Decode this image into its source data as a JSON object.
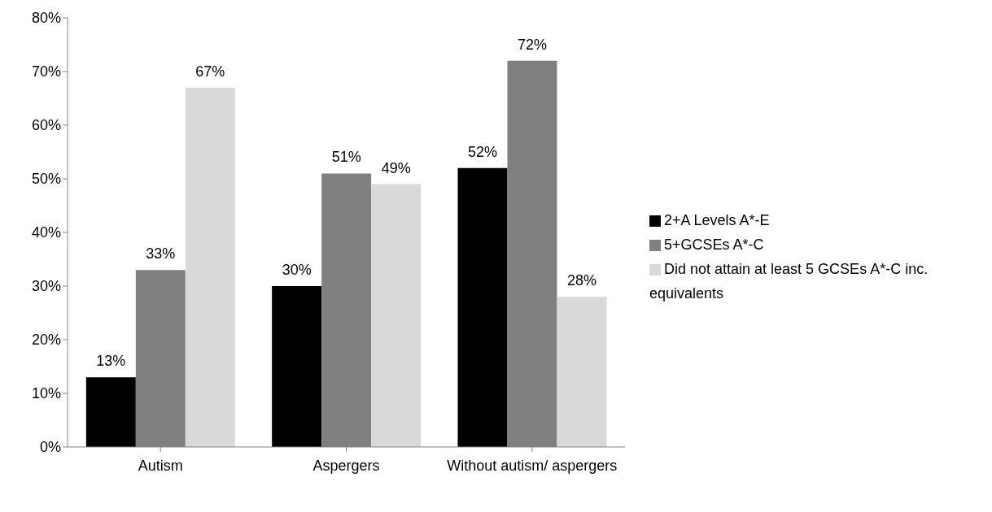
{
  "chart_data": {
    "type": "bar",
    "categories": [
      "Autism",
      "Aspergers",
      "Without autism/ aspergers"
    ],
    "series": [
      {
        "name": "2+A Levels A*-E",
        "color": "#000000",
        "values": [
          13,
          30,
          52
        ],
        "value_labels": [
          "13%",
          "30%",
          "52%"
        ]
      },
      {
        "name": "5+GCSEs A*-C",
        "color": "#808080",
        "values": [
          33,
          51,
          72
        ],
        "value_labels": [
          "33%",
          "51%",
          "72%"
        ]
      },
      {
        "name": "Did not attain at least 5 GCSEs A*-C inc. equivalents",
        "color": "#d9d9d9",
        "values": [
          67,
          49,
          28
        ],
        "value_labels": [
          "67%",
          "49%",
          "28%"
        ]
      }
    ],
    "ylim": [
      0,
      80
    ],
    "yticks": [
      {
        "value": 0,
        "label": "0%"
      },
      {
        "value": 10,
        "label": "10%"
      },
      {
        "value": 20,
        "label": "20%"
      },
      {
        "value": 30,
        "label": "30%"
      },
      {
        "value": 40,
        "label": "40%"
      },
      {
        "value": 50,
        "label": "50%"
      },
      {
        "value": 60,
        "label": "60%"
      },
      {
        "value": 70,
        "label": "70%"
      },
      {
        "value": 80,
        "label": "80%"
      }
    ],
    "grid": false,
    "legend": "right"
  }
}
